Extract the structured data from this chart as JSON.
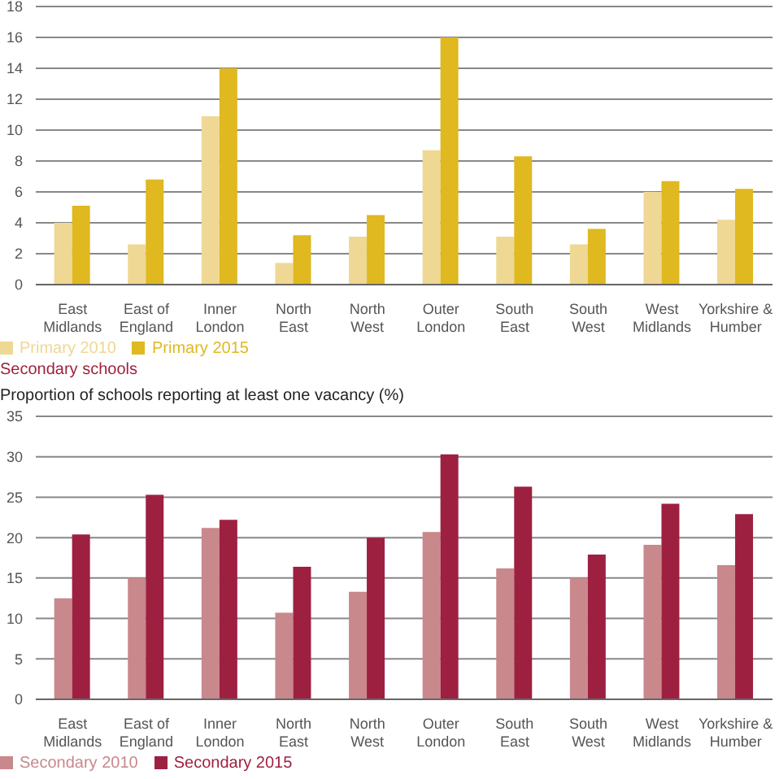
{
  "chart_data": [
    {
      "type": "bar",
      "categories": [
        "East Midlands",
        "East of England",
        "Inner London",
        "North East",
        "North West",
        "Outer London",
        "South East",
        "South West",
        "West Midlands",
        "Yorkshire & Humber"
      ],
      "series": [
        {
          "name": "Primary 2010",
          "color": "#eed894",
          "values": [
            4.0,
            2.6,
            10.9,
            1.4,
            3.1,
            8.7,
            3.1,
            2.6,
            6.0,
            4.2
          ]
        },
        {
          "name": "Primary 2015",
          "color": "#e0b820",
          "values": [
            5.1,
            6.8,
            14.0,
            3.2,
            4.5,
            16.0,
            8.3,
            3.6,
            6.7,
            6.2
          ]
        }
      ],
      "ylim": [
        0,
        18
      ],
      "yticks": [
        0,
        2,
        4,
        6,
        8,
        10,
        12,
        14,
        16,
        18
      ],
      "grid": "y",
      "legend": "bottom left"
    },
    {
      "type": "bar",
      "title": "Secondary schools",
      "ylabel": "Proportion of schools reporting at least one vacancy (%)",
      "categories": [
        "East Midlands",
        "East of England",
        "Inner London",
        "North East",
        "North West",
        "Outer London",
        "South East",
        "South West",
        "West Midlands",
        "Yorkshire & Humber"
      ],
      "series": [
        {
          "name": "Secondary 2010",
          "color": "#c9888c",
          "values": [
            12.5,
            15.0,
            21.2,
            10.7,
            13.3,
            20.7,
            16.2,
            15.0,
            19.1,
            16.6
          ]
        },
        {
          "name": "Secondary 2015",
          "color": "#9e2040",
          "values": [
            20.4,
            25.3,
            22.2,
            16.4,
            20.0,
            30.3,
            26.3,
            17.9,
            24.2,
            22.9
          ]
        }
      ],
      "ylim": [
        0,
        35
      ],
      "yticks": [
        0,
        5,
        10,
        15,
        20,
        25,
        30,
        35
      ],
      "grid": "y",
      "legend": "bottom left"
    }
  ]
}
